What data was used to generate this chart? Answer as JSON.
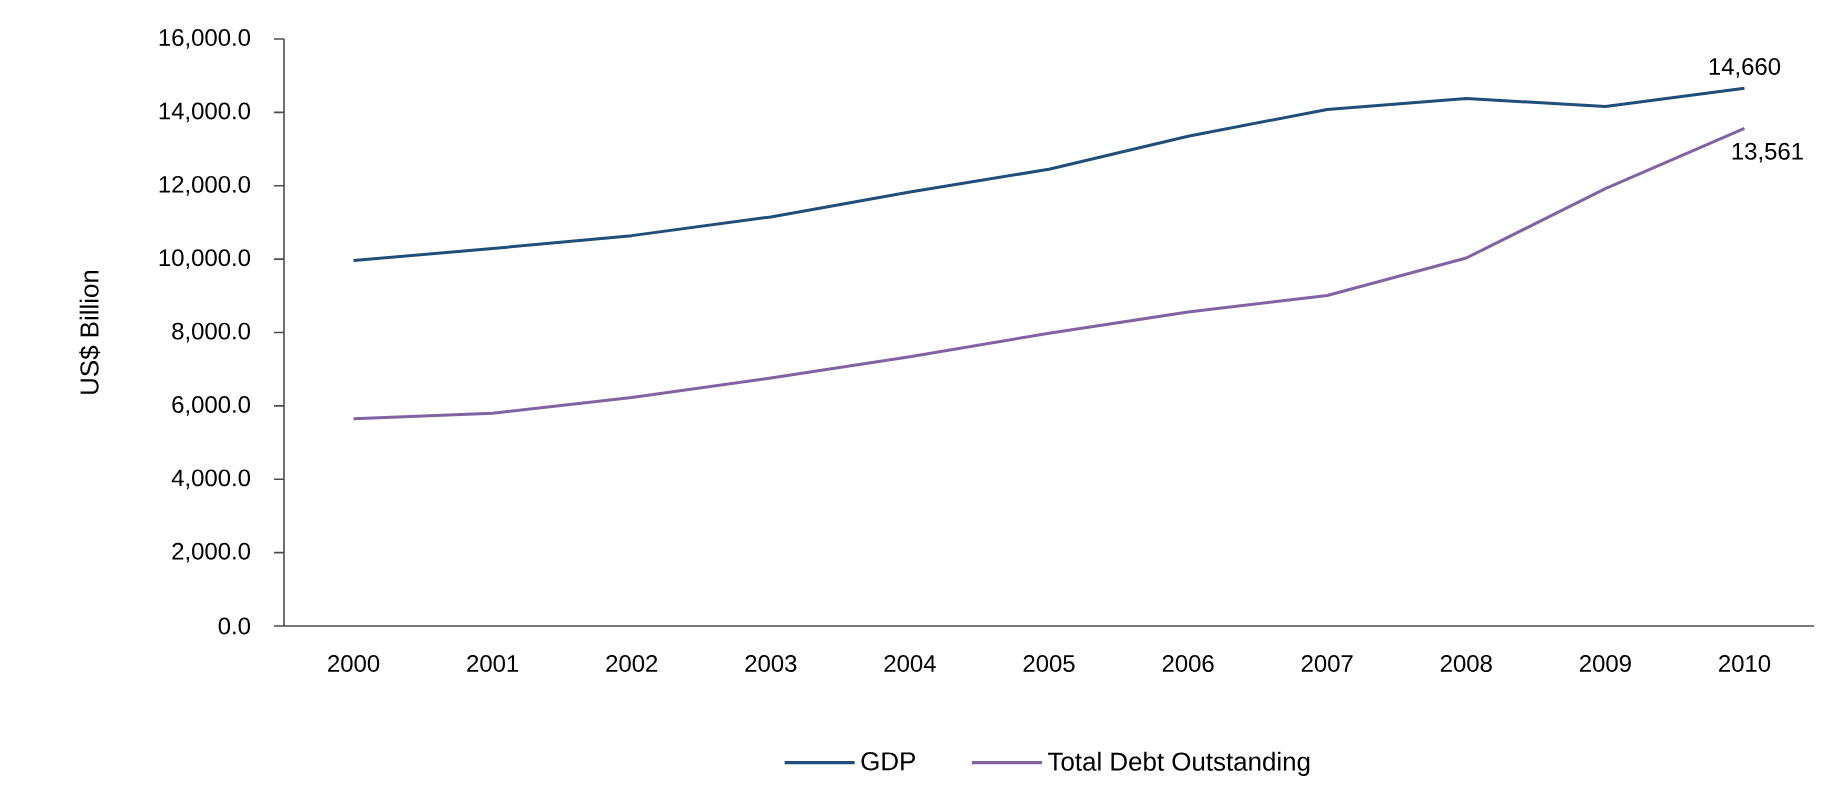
{
  "chart_data": {
    "type": "line",
    "ylabel": "US$ Billion",
    "categories": [
      "2000",
      "2001",
      "2002",
      "2003",
      "2004",
      "2005",
      "2006",
      "2007",
      "2008",
      "2009",
      "2010"
    ],
    "series": [
      {
        "name": "GDP",
        "color": "#1f4e79",
        "values": [
          9960,
          10290,
          10640,
          11150,
          11830,
          12450,
          13350,
          14080,
          14380,
          14160,
          14660
        ],
        "value_labels": [
          null,
          null,
          null,
          null,
          null,
          null,
          null,
          null,
          null,
          null,
          "14,660"
        ]
      },
      {
        "name": "Total Debt Outstanding",
        "color": "#8064a2",
        "values": [
          5650,
          5800,
          6230,
          6760,
          7340,
          7980,
          8560,
          9010,
          10030,
          11920,
          13561
        ],
        "value_labels": [
          null,
          null,
          null,
          null,
          null,
          null,
          null,
          null,
          null,
          null,
          "13,561"
        ]
      }
    ],
    "ylim": [
      0,
      16000
    ],
    "yticks": [
      {
        "value": 0,
        "label": "0.0"
      },
      {
        "value": 2000,
        "label": "2,000.0"
      },
      {
        "value": 4000,
        "label": "4,000.0"
      },
      {
        "value": 6000,
        "label": "6,000.0"
      },
      {
        "value": 8000,
        "label": "8,000.0"
      },
      {
        "value": 10000,
        "label": "10,000.0"
      },
      {
        "value": 12000,
        "label": "12,000.0"
      },
      {
        "value": 14000,
        "label": "14,000.0"
      },
      {
        "value": 16000,
        "label": "16,000.0"
      }
    ],
    "legend": "bottom",
    "grid": false,
    "marker": "none",
    "line_style": "solid"
  }
}
